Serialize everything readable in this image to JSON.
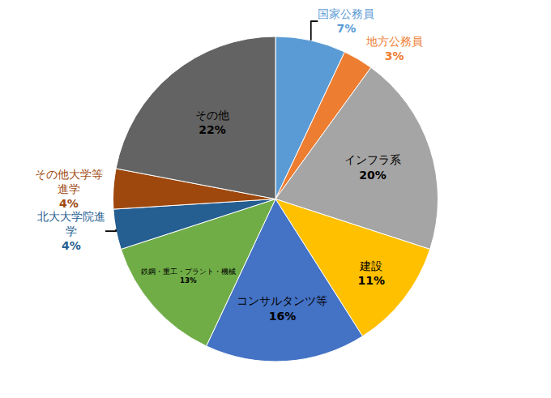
{
  "chart_data": {
    "type": "pie",
    "categories": [
      "国家公務員",
      "地方公務員",
      "インフラ系",
      "建設",
      "コンサルタンツ等",
      "鉄鋼・重工・プラント・機械",
      "北大大学院進学",
      "その他大学等進学",
      "その他"
    ],
    "values": [
      7,
      3,
      20,
      11,
      16,
      13,
      4,
      4,
      22
    ],
    "value_labels": [
      "7%",
      "3%",
      "20%",
      "11%",
      "16%",
      "13%",
      "4%",
      "4%",
      "22%"
    ],
    "colors": [
      "#5B9BD5",
      "#ED7D31",
      "#A5A5A5",
      "#FFC000",
      "#4472C4",
      "#70AD47",
      "#255E91",
      "#9E480E",
      "#636363"
    ],
    "data_labels": true
  }
}
